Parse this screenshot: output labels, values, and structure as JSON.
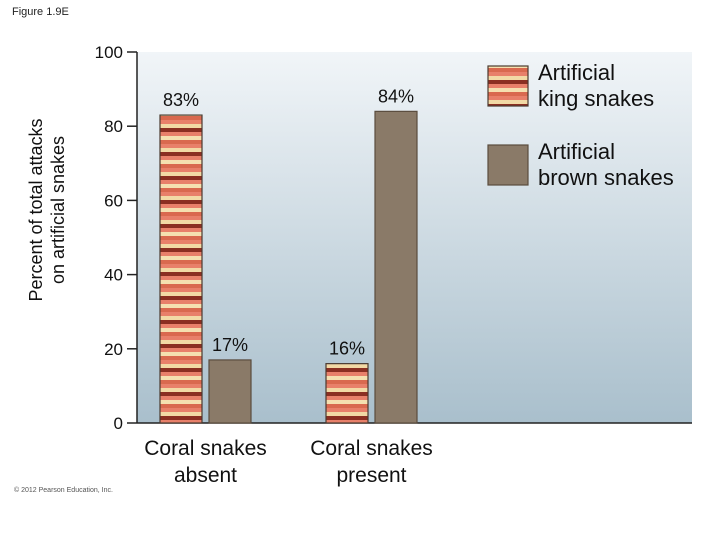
{
  "figure_label": "Figure 1.9E",
  "copyright": "© 2012 Pearson Education, Inc.",
  "colors": {
    "king_stripes": [
      "#e8806a",
      "#f2d9a5",
      "#8b2f22",
      "#e8806a",
      "#f5e0b0",
      "#d9694f"
    ],
    "king_outline": "#4a3a30",
    "brown": "#8a7a68",
    "plot_top": "#f1f5f8",
    "plot_bottom": "#a9bfcc"
  },
  "chart_data": {
    "type": "bar",
    "ylabel_lines": [
      "Percent of total attacks",
      "on artificial snakes"
    ],
    "ylim": [
      0,
      100
    ],
    "yticks": [
      0,
      20,
      40,
      60,
      80,
      100
    ],
    "categories": [
      {
        "lines": [
          "Coral snakes",
          "absent"
        ]
      },
      {
        "lines": [
          "Coral snakes",
          "present"
        ]
      }
    ],
    "series": [
      {
        "name_lines": [
          "Artificial",
          "king snakes"
        ],
        "style": "king",
        "values": [
          83,
          16
        ],
        "labels": [
          "83%",
          "16%"
        ]
      },
      {
        "name_lines": [
          "Artificial",
          "brown snakes"
        ],
        "style": "brown",
        "values": [
          17,
          84
        ],
        "labels": [
          "17%",
          "84%"
        ]
      }
    ],
    "grid": false,
    "legend": "top-right"
  }
}
